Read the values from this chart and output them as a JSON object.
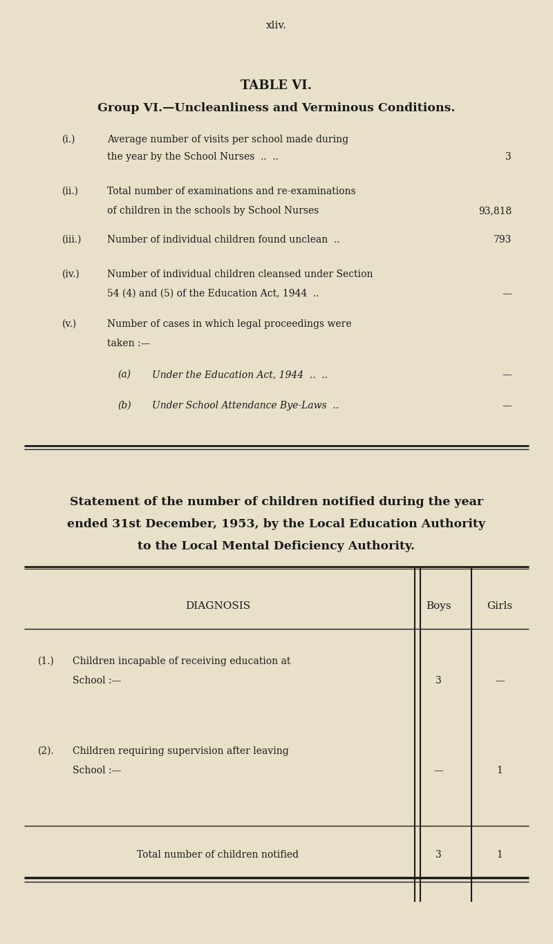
{
  "bg_color": "#e8e0c8",
  "text_color": "#1a1a1a",
  "page_label": "xliv.",
  "title_line1": "TABLE VI.",
  "title_line2": "Group VI.—Uncleanliness and Verminous Conditions.",
  "items": [
    {
      "label": "(i.)",
      "text_line1": "Average number of visits per school made during",
      "text_line2": "the year by the School Nurses  ..  ..",
      "value": "3",
      "indent": 0
    },
    {
      "label": "(ii.)",
      "text_line1": "Total number of examinations and re-examinations",
      "text_line2": "of children in the schools by School Nurses",
      "value": "93,818",
      "indent": 0
    },
    {
      "label": "(iii.)",
      "text_line1": "Number of individual children found unclean  ..",
      "text_line2": "",
      "value": "793",
      "indent": 0
    },
    {
      "label": "(iv.)",
      "text_line1": "Number of individual children cleansed under Section",
      "text_line2": "54 (4) and (5) of the Education Act, 1944  ..",
      "value": "—",
      "indent": 0
    },
    {
      "label": "(v.)",
      "text_line1": "Number of cases in which legal proceedings were",
      "text_line2": "taken :—",
      "value": "",
      "indent": 0
    },
    {
      "label": "(a)",
      "text_line1": "Under the Education Act, 1944  ..  ..",
      "text_line2": "",
      "value": "—",
      "indent": 1,
      "italic": true
    },
    {
      "label": "(b)",
      "text_line1": "Under School Attendance Bye-Laws  ..",
      "text_line2": "",
      "value": "—",
      "indent": 1,
      "italic": true
    }
  ],
  "statement_title_line1": "Statement of the number of children notified during the year",
  "statement_title_line2": "ended 31st December, 1953, by the Local Education Authority",
  "statement_title_line3": "to the Local Mental Deficiency Authority.",
  "table_rows": [
    {
      "label": "(1.)",
      "text_line1": "Children incapable of receiving education at",
      "text_line2": "School :—",
      "boys": "3",
      "girls": "—"
    },
    {
      "label": "(2).",
      "text_line1": "Children requiring supervision after leaving",
      "text_line2": "School :—",
      "boys": "—",
      "girls": "1"
    }
  ],
  "table_total_label": "Total number of children notified",
  "table_total_boys": "3",
  "table_total_girls": "1",
  "fig_width": 8.0,
  "fig_height": 13.66,
  "dpi": 100
}
